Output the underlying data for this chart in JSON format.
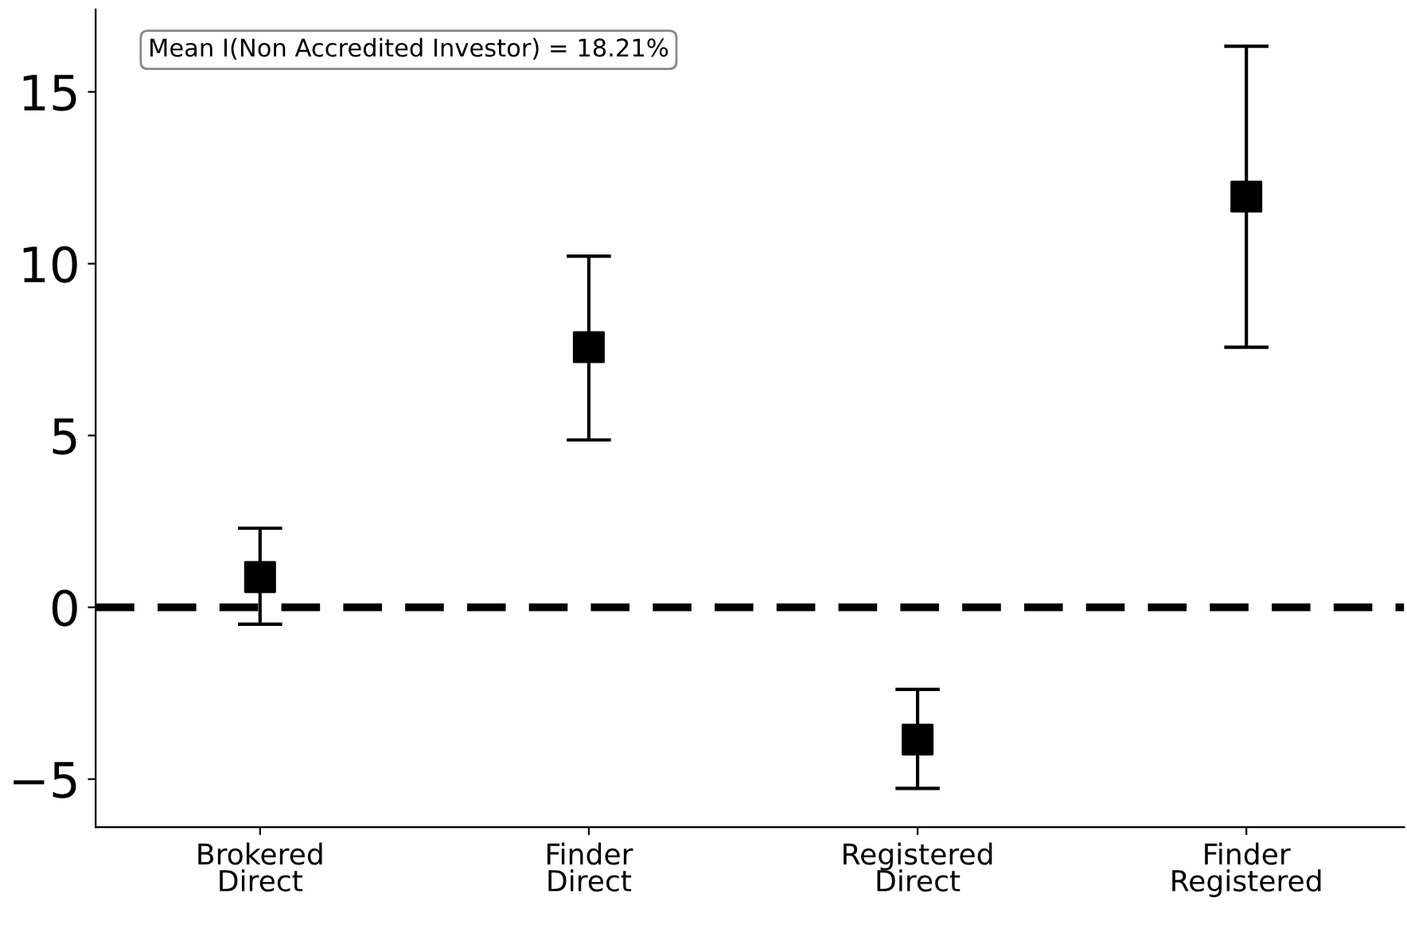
{
  "chart_data": {
    "type": "scatter",
    "categories": [
      "Brokered\nDirect",
      "Finder\nDirect",
      "Registered\nDirect",
      "Finder\nRegistered"
    ],
    "series": [
      {
        "color": "#000000",
        "values": [
          0.88,
          7.57,
          -3.85,
          11.95
        ],
        "errors": [
          [
            -0.49,
            2.3
          ],
          [
            4.87,
            10.22
          ],
          [
            -5.27,
            -2.39
          ],
          [
            7.57,
            16.33
          ]
        ]
      }
    ],
    "marker": "square",
    "ylim": [
      -6.4,
      17.4
    ],
    "yticks": [
      -5,
      0,
      5,
      10,
      15
    ],
    "ref_lines": [
      {
        "axis": "y",
        "value": 0,
        "color": "#000000",
        "line_style": "dashed"
      }
    ],
    "annotations": [
      "Mean I(Non Accredited Investor) = 18.21%"
    ],
    "grid": false,
    "legend": false
  }
}
